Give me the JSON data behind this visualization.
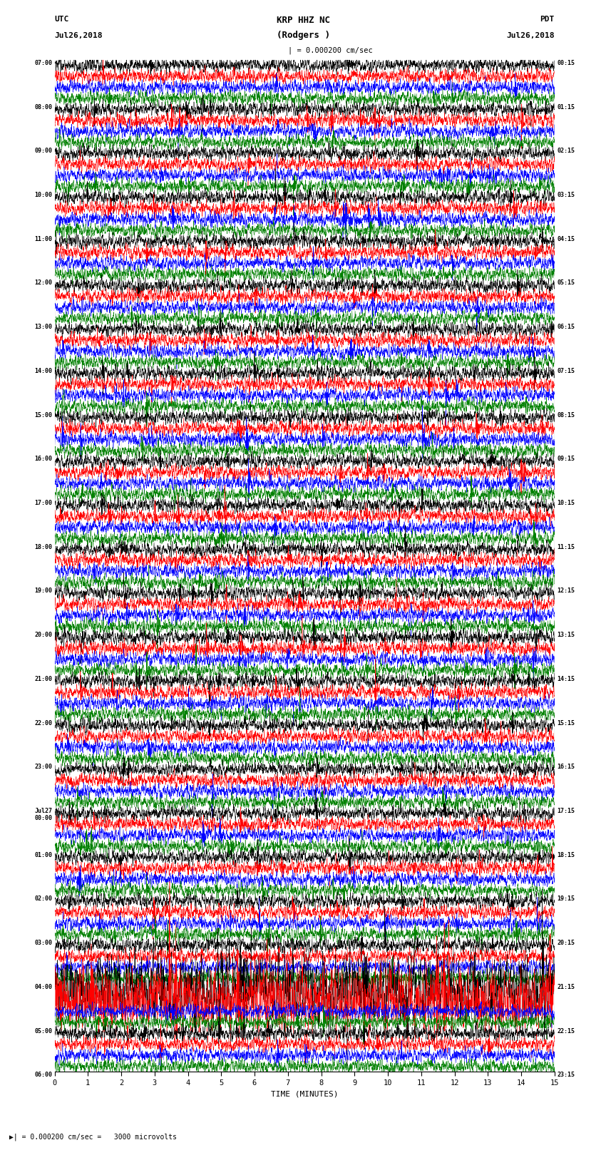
{
  "title_line1": "KRP HHZ NC",
  "title_line2": "(Rodgers )",
  "scale_label": "= 0.000200 cm/sec",
  "left_label_line1": "UTC",
  "left_label_line2": "Jul26,2018",
  "right_label_line1": "PDT",
  "right_label_line2": "Jul26,2018",
  "bottom_note": "= 0.000200 cm/sec =   3000 microvolts",
  "xlabel": "TIME (MINUTES)",
  "left_times": [
    "07:00",
    "",
    "",
    "",
    "08:00",
    "",
    "",
    "",
    "09:00",
    "",
    "",
    "",
    "10:00",
    "",
    "",
    "",
    "11:00",
    "",
    "",
    "",
    "12:00",
    "",
    "",
    "",
    "13:00",
    "",
    "",
    "",
    "14:00",
    "",
    "",
    "",
    "15:00",
    "",
    "",
    "",
    "16:00",
    "",
    "",
    "",
    "17:00",
    "",
    "",
    "",
    "18:00",
    "",
    "",
    "",
    "19:00",
    "",
    "",
    "",
    "20:00",
    "",
    "",
    "",
    "21:00",
    "",
    "",
    "",
    "22:00",
    "",
    "",
    "",
    "23:00",
    "",
    "",
    "",
    "Jul27\n00:00",
    "",
    "",
    "",
    "01:00",
    "",
    "",
    "",
    "02:00",
    "",
    "",
    "",
    "03:00",
    "",
    "",
    "",
    "04:00",
    "",
    "",
    "",
    "05:00",
    "",
    "",
    "",
    "06:00",
    "",
    "",
    ""
  ],
  "right_times": [
    "00:15",
    "",
    "",
    "",
    "01:15",
    "",
    "",
    "",
    "02:15",
    "",
    "",
    "",
    "03:15",
    "",
    "",
    "",
    "04:15",
    "",
    "",
    "",
    "05:15",
    "",
    "",
    "",
    "06:15",
    "",
    "",
    "",
    "07:15",
    "",
    "",
    "",
    "08:15",
    "",
    "",
    "",
    "09:15",
    "",
    "",
    "",
    "10:15",
    "",
    "",
    "",
    "11:15",
    "",
    "",
    "",
    "12:15",
    "",
    "",
    "",
    "13:15",
    "",
    "",
    "",
    "14:15",
    "",
    "",
    "",
    "15:15",
    "",
    "",
    "",
    "16:15",
    "",
    "",
    "",
    "17:15",
    "",
    "",
    "",
    "18:15",
    "",
    "",
    "",
    "19:15",
    "",
    "",
    "",
    "20:15",
    "",
    "",
    "",
    "21:15",
    "",
    "",
    "",
    "22:15",
    "",
    "",
    "",
    "23:15",
    "",
    "",
    ""
  ],
  "colors": [
    "black",
    "red",
    "blue",
    "green"
  ],
  "n_rows": 92,
  "x_min": 0,
  "x_max": 15,
  "x_ticks": [
    0,
    1,
    2,
    3,
    4,
    5,
    6,
    7,
    8,
    9,
    10,
    11,
    12,
    13,
    14,
    15
  ],
  "noise_seed": 42,
  "amplitude": 0.28,
  "figsize": [
    8.5,
    16.13
  ],
  "dpi": 100,
  "bg_color": "white",
  "large_event_rows": [
    84,
    85
  ],
  "large_event_amplitudes": [
    5.0,
    4.5
  ]
}
